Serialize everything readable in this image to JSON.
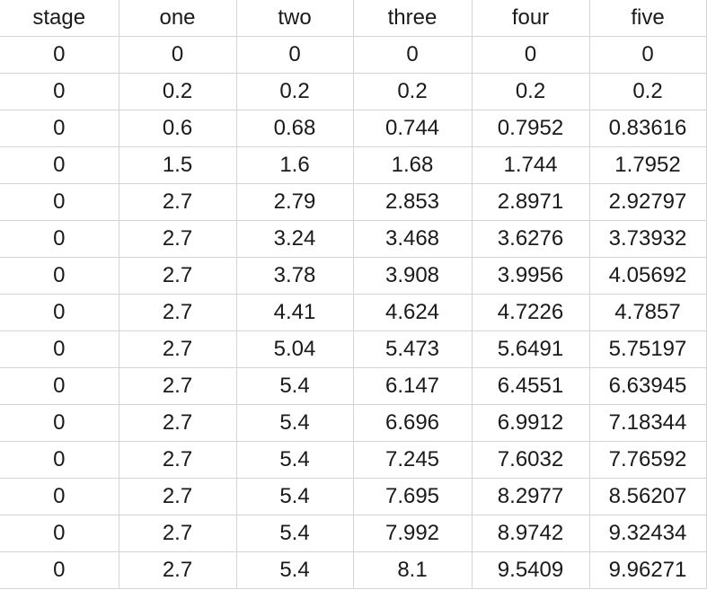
{
  "sheet": {
    "headers": [
      "stage",
      "one",
      "two",
      "three",
      "four",
      "five"
    ],
    "rows": [
      [
        "0",
        "0",
        "0",
        "0",
        "0",
        "0"
      ],
      [
        "0",
        "0.2",
        "0.2",
        "0.2",
        "0.2",
        "0.2"
      ],
      [
        "0",
        "0.6",
        "0.68",
        "0.744",
        "0.7952",
        "0.83616"
      ],
      [
        "0",
        "1.5",
        "1.6",
        "1.68",
        "1.744",
        "1.7952"
      ],
      [
        "0",
        "2.7",
        "2.79",
        "2.853",
        "2.8971",
        "2.92797"
      ],
      [
        "0",
        "2.7",
        "3.24",
        "3.468",
        "3.6276",
        "3.73932"
      ],
      [
        "0",
        "2.7",
        "3.78",
        "3.908",
        "3.9956",
        "4.05692"
      ],
      [
        "0",
        "2.7",
        "4.41",
        "4.624",
        "4.7226",
        "4.7857"
      ],
      [
        "0",
        "2.7",
        "5.04",
        "5.473",
        "5.6491",
        "5.75197"
      ],
      [
        "0",
        "2.7",
        "5.4",
        "6.147",
        "6.4551",
        "6.63945"
      ],
      [
        "0",
        "2.7",
        "5.4",
        "6.696",
        "6.9912",
        "7.18344"
      ],
      [
        "0",
        "2.7",
        "5.4",
        "7.245",
        "7.6032",
        "7.76592"
      ],
      [
        "0",
        "2.7",
        "5.4",
        "7.695",
        "8.2977",
        "8.56207"
      ],
      [
        "0",
        "2.7",
        "5.4",
        "7.992",
        "8.9742",
        "9.32434"
      ],
      [
        "0",
        "2.7",
        "5.4",
        "8.1",
        "9.5409",
        "9.96271"
      ]
    ]
  }
}
